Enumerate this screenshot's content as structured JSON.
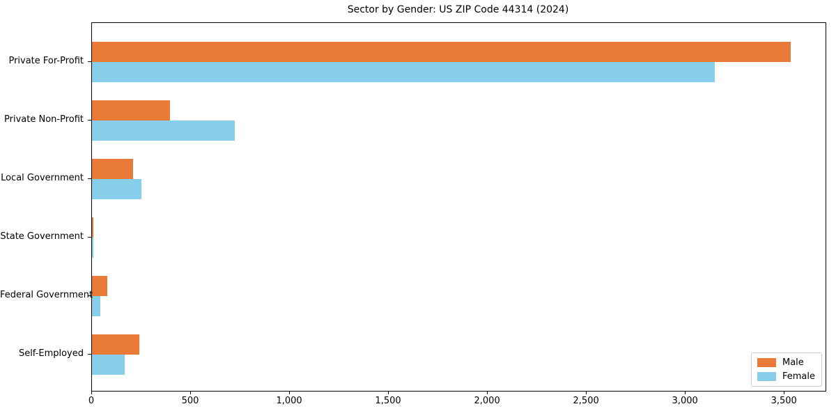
{
  "chart_data": {
    "type": "bar",
    "orientation": "horizontal",
    "title": "Sector by Gender: US ZIP Code 44314 (2024)",
    "categories": [
      "Private For-Profit",
      "Private Non-Profit",
      "Local Government",
      "State Government",
      "Federal Government",
      "Self-Employed"
    ],
    "series": [
      {
        "name": "Male",
        "color": "#EA7A38",
        "values": [
          3531,
          393,
          207,
          8,
          78,
          238
        ]
      },
      {
        "name": "Female",
        "color": "#87CEEB",
        "values": [
          3149,
          722,
          251,
          6,
          43,
          166
        ]
      }
    ],
    "xlim": [
      0,
      3707
    ],
    "xticks": [
      0,
      500,
      1000,
      1500,
      2000,
      2500,
      3000,
      3500
    ],
    "xtick_labels": [
      "0",
      "500",
      "1,000",
      "1,500",
      "2,000",
      "2,500",
      "3,000",
      "3,500"
    ],
    "xlabel": "",
    "ylabel": "",
    "grid": false,
    "legend_position": "lower right",
    "background_color": "#ffffff",
    "axis_color": "#000000"
  }
}
